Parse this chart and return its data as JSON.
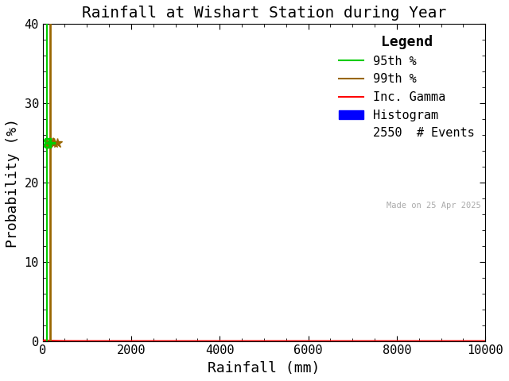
{
  "title": "Rainfall at Wishart Station during Year",
  "xlabel": "Rainfall (mm)",
  "ylabel": "Probability (%)",
  "xlim": [
    0,
    10000
  ],
  "ylim": [
    0,
    40
  ],
  "xticks": [
    0,
    2000,
    4000,
    6000,
    8000,
    10000
  ],
  "yticks": [
    0,
    10,
    20,
    30,
    40
  ],
  "bg_color": "#ffffff",
  "line_95th_x": 90,
  "line_99th_x": 175,
  "line_95th_color": "#00cc00",
  "line_99th_color": "#996600",
  "gamma_color": "#ff0000",
  "hist_color": "#0000ff",
  "marker_x_values": [
    90,
    175,
    260,
    330,
    395
  ],
  "marker_y": 25.0,
  "marker_color_95": "#00cc00",
  "marker_color_99": "#996600",
  "n_events": "2550",
  "watermark": "Made on 25 Apr 2025",
  "watermark_color": "#aaaaaa",
  "legend_title": "Legend",
  "legend_95_label": "95th %",
  "legend_99_label": "99th %",
  "legend_gamma_label": "Inc. Gamma",
  "legend_hist_label": "Histogram",
  "legend_events_label": "# Events",
  "title_fontsize": 14,
  "axis_label_fontsize": 13,
  "tick_fontsize": 11,
  "legend_fontsize": 11,
  "gamma_x": [
    0,
    10,
    20,
    50,
    100,
    200,
    500,
    1000,
    2000,
    5000,
    10000
  ],
  "gamma_y": [
    0.0,
    0.05,
    0.08,
    0.1,
    0.08,
    0.04,
    0.01,
    0.003,
    0.001,
    0.0002,
    0.0001
  ]
}
